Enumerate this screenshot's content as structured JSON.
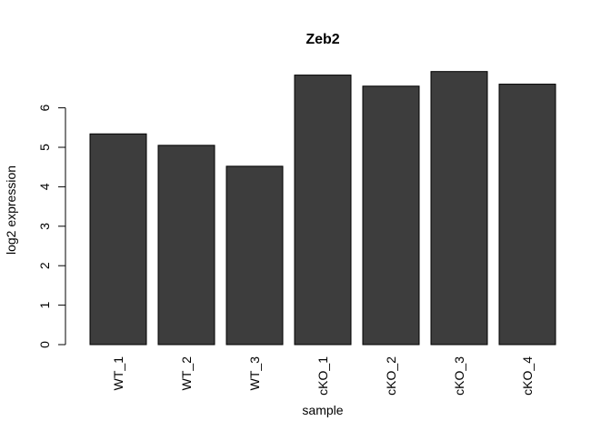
{
  "chart_data": {
    "type": "bar",
    "title": "Zeb2",
    "xlabel": "sample",
    "ylabel": "log2 expression",
    "categories": [
      "WT_1",
      "WT_2",
      "WT_3",
      "cKO_1",
      "cKO_2",
      "cKO_3",
      "cKO_4"
    ],
    "values": [
      5.34,
      5.05,
      4.52,
      6.83,
      6.55,
      6.92,
      6.6
    ],
    "yticks": [
      "0",
      "1",
      "2",
      "3",
      "4",
      "5",
      "6"
    ],
    "ylim": [
      0,
      6.92
    ],
    "grid": false,
    "bar_color": "#3d3d3d"
  }
}
